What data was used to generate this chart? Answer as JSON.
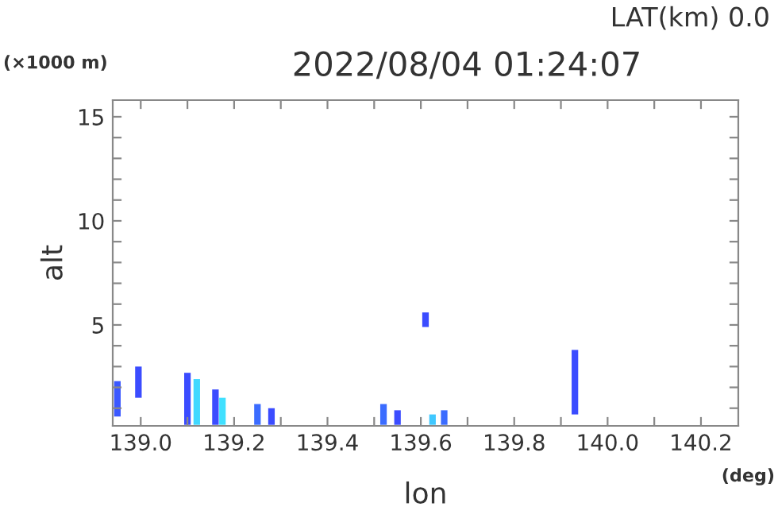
{
  "chart_data": {
    "type": "bar",
    "title": "2022/08/04 01:24:07",
    "xlabel": "lon",
    "ylabel": "alt",
    "annotations": [
      "LAT(km) 0.0",
      "(×1000 m)",
      "(deg)"
    ],
    "x": [
      138.95,
      138.995,
      139.1,
      139.12,
      139.16,
      139.175,
      139.25,
      139.28,
      139.52,
      139.55,
      139.61,
      139.625,
      139.65,
      139.93
    ],
    "base": [
      0.6,
      1.5,
      0.2,
      0.2,
      0.2,
      0.2,
      0.2,
      0.2,
      0.2,
      0.2,
      4.9,
      0.2,
      0.2,
      0.7
    ],
    "values": [
      1.7,
      1.5,
      2.5,
      2.2,
      1.7,
      1.3,
      1.0,
      0.8,
      1.0,
      0.7,
      0.7,
      0.5,
      0.7,
      3.1
    ],
    "colors": [
      "#3b58ff",
      "#3b4cff",
      "#3b4cff",
      "#40d8ff",
      "#3b4cff",
      "#40e0ff",
      "#3b6cff",
      "#3b4cff",
      "#3b6cff",
      "#3b4cff",
      "#3b4cff",
      "#40c8ff",
      "#3b6cff",
      "#3b4cff"
    ],
    "xlim": [
      138.94,
      140.28
    ],
    "ylim": [
      0.15,
      15.8
    ],
    "xticks": [
      {
        "value": 139.0,
        "label": "139.0"
      },
      {
        "value": 139.1,
        "label": null
      },
      {
        "value": 139.2,
        "label": "139.2"
      },
      {
        "value": 139.3,
        "label": null
      },
      {
        "value": 139.4,
        "label": "139.4"
      },
      {
        "value": 139.5,
        "label": null
      },
      {
        "value": 139.6,
        "label": "139.6"
      },
      {
        "value": 139.7,
        "label": null
      },
      {
        "value": 139.8,
        "label": "139.8"
      },
      {
        "value": 139.9,
        "label": null
      },
      {
        "value": 140.0,
        "label": "140.0"
      },
      {
        "value": 140.1,
        "label": null
      },
      {
        "value": 140.2,
        "label": "140.2"
      }
    ],
    "yticks": [
      {
        "value": 1,
        "label": null
      },
      {
        "value": 2,
        "label": null
      },
      {
        "value": 3,
        "label": null
      },
      {
        "value": 4,
        "label": null
      },
      5,
      {
        "value": 6,
        "label": null
      },
      {
        "value": 7,
        "label": null
      },
      {
        "value": 8,
        "label": null
      },
      {
        "value": 9,
        "label": null
      },
      10,
      {
        "value": 11,
        "label": null
      },
      {
        "value": 12,
        "label": null
      },
      {
        "value": 13,
        "label": null
      },
      {
        "value": 14,
        "label": null
      },
      15
    ],
    "grid": false,
    "legend": false
  }
}
